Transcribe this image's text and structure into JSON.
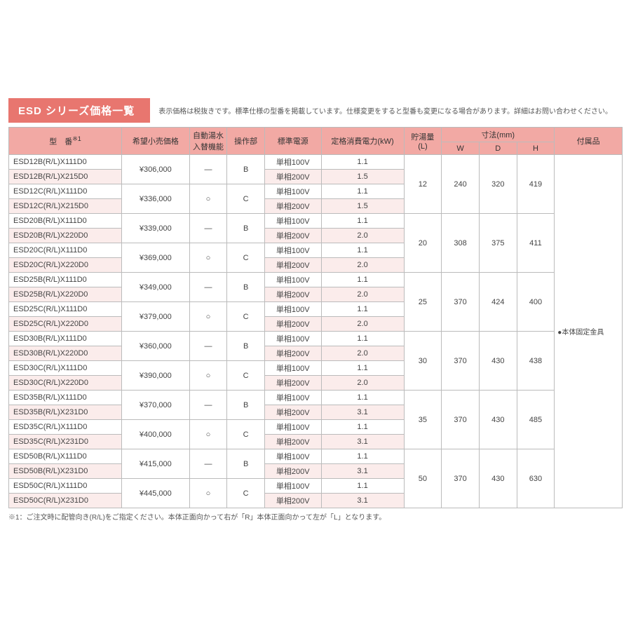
{
  "title": "ESD シリーズ価格一覧",
  "title_note": "表示価格は税抜きです。標準仕様の型番を掲載しています。仕様変更をすると型番も変更になる場合があります。詳細はお問い合わせください。",
  "colors": {
    "header_bg": "#f2a9a4",
    "title_bg": "#e8766f",
    "stripe_bg": "#fbeceb",
    "border": "#bbbbbb"
  },
  "columns": {
    "model": "型　番",
    "model_sup": "※1",
    "price": "希望小売価格",
    "autofill": "自動湯水\n入替機能",
    "panel": "操作部",
    "power": "標準電源",
    "rated": "定格消費電力(kW)",
    "volume": "貯湯量\n(L)",
    "dims": "寸法(mm)",
    "w": "W",
    "d": "D",
    "h": "H",
    "accessory": "付属品"
  },
  "accessory_value": "●本体固定金具",
  "footnote": "※1：ご注文時に配管向き(R/L)をご指定ください。本体正面向かって右が「R」本体正面向かって左が「L」となります。",
  "groups": [
    {
      "volume": "12",
      "w": "240",
      "d": "320",
      "h": "419",
      "pairs": [
        {
          "price": "¥306,000",
          "autofill": "—",
          "panel": "B",
          "rows": [
            {
              "model": "ESD12B(R/L)X111D0",
              "power": "単相100V",
              "rated": "1.1"
            },
            {
              "model": "ESD12B(R/L)X215D0",
              "power": "単相200V",
              "rated": "1.5"
            }
          ]
        },
        {
          "price": "¥336,000",
          "autofill": "○",
          "panel": "C",
          "rows": [
            {
              "model": "ESD12C(R/L)X111D0",
              "power": "単相100V",
              "rated": "1.1"
            },
            {
              "model": "ESD12C(R/L)X215D0",
              "power": "単相200V",
              "rated": "1.5"
            }
          ]
        }
      ]
    },
    {
      "volume": "20",
      "w": "308",
      "d": "375",
      "h": "411",
      "pairs": [
        {
          "price": "¥339,000",
          "autofill": "—",
          "panel": "B",
          "rows": [
            {
              "model": "ESD20B(R/L)X111D0",
              "power": "単相100V",
              "rated": "1.1"
            },
            {
              "model": "ESD20B(R/L)X220D0",
              "power": "単相200V",
              "rated": "2.0"
            }
          ]
        },
        {
          "price": "¥369,000",
          "autofill": "○",
          "panel": "C",
          "rows": [
            {
              "model": "ESD20C(R/L)X111D0",
              "power": "単相100V",
              "rated": "1.1"
            },
            {
              "model": "ESD20C(R/L)X220D0",
              "power": "単相200V",
              "rated": "2.0"
            }
          ]
        }
      ]
    },
    {
      "volume": "25",
      "w": "370",
      "d": "424",
      "h": "400",
      "pairs": [
        {
          "price": "¥349,000",
          "autofill": "—",
          "panel": "B",
          "rows": [
            {
              "model": "ESD25B(R/L)X111D0",
              "power": "単相100V",
              "rated": "1.1"
            },
            {
              "model": "ESD25B(R/L)X220D0",
              "power": "単相200V",
              "rated": "2.0"
            }
          ]
        },
        {
          "price": "¥379,000",
          "autofill": "○",
          "panel": "C",
          "rows": [
            {
              "model": "ESD25C(R/L)X111D0",
              "power": "単相100V",
              "rated": "1.1"
            },
            {
              "model": "ESD25C(R/L)X220D0",
              "power": "単相200V",
              "rated": "2.0"
            }
          ]
        }
      ]
    },
    {
      "volume": "30",
      "w": "370",
      "d": "430",
      "h": "438",
      "pairs": [
        {
          "price": "¥360,000",
          "autofill": "—",
          "panel": "B",
          "rows": [
            {
              "model": "ESD30B(R/L)X111D0",
              "power": "単相100V",
              "rated": "1.1"
            },
            {
              "model": "ESD30B(R/L)X220D0",
              "power": "単相200V",
              "rated": "2.0"
            }
          ]
        },
        {
          "price": "¥390,000",
          "autofill": "○",
          "panel": "C",
          "rows": [
            {
              "model": "ESD30C(R/L)X111D0",
              "power": "単相100V",
              "rated": "1.1"
            },
            {
              "model": "ESD30C(R/L)X220D0",
              "power": "単相200V",
              "rated": "2.0"
            }
          ]
        }
      ]
    },
    {
      "volume": "35",
      "w": "370",
      "d": "430",
      "h": "485",
      "pairs": [
        {
          "price": "¥370,000",
          "autofill": "—",
          "panel": "B",
          "rows": [
            {
              "model": "ESD35B(R/L)X111D0",
              "power": "単相100V",
              "rated": "1.1"
            },
            {
              "model": "ESD35B(R/L)X231D0",
              "power": "単相200V",
              "rated": "3.1"
            }
          ]
        },
        {
          "price": "¥400,000",
          "autofill": "○",
          "panel": "C",
          "rows": [
            {
              "model": "ESD35C(R/L)X111D0",
              "power": "単相100V",
              "rated": "1.1"
            },
            {
              "model": "ESD35C(R/L)X231D0",
              "power": "単相200V",
              "rated": "3.1"
            }
          ]
        }
      ]
    },
    {
      "volume": "50",
      "w": "370",
      "d": "430",
      "h": "630",
      "pairs": [
        {
          "price": "¥415,000",
          "autofill": "—",
          "panel": "B",
          "rows": [
            {
              "model": "ESD50B(R/L)X111D0",
              "power": "単相100V",
              "rated": "1.1"
            },
            {
              "model": "ESD50B(R/L)X231D0",
              "power": "単相200V",
              "rated": "3.1"
            }
          ]
        },
        {
          "price": "¥445,000",
          "autofill": "○",
          "panel": "C",
          "rows": [
            {
              "model": "ESD50C(R/L)X111D0",
              "power": "単相100V",
              "rated": "1.1"
            },
            {
              "model": "ESD50C(R/L)X231D0",
              "power": "単相200V",
              "rated": "3.1"
            }
          ]
        }
      ]
    }
  ],
  "col_widths": {
    "model": 150,
    "price": 90,
    "autofill": 50,
    "panel": 50,
    "power": 75,
    "rated": 110,
    "volume": 50,
    "w": 50,
    "d": 50,
    "h": 50,
    "accessory": 90
  }
}
